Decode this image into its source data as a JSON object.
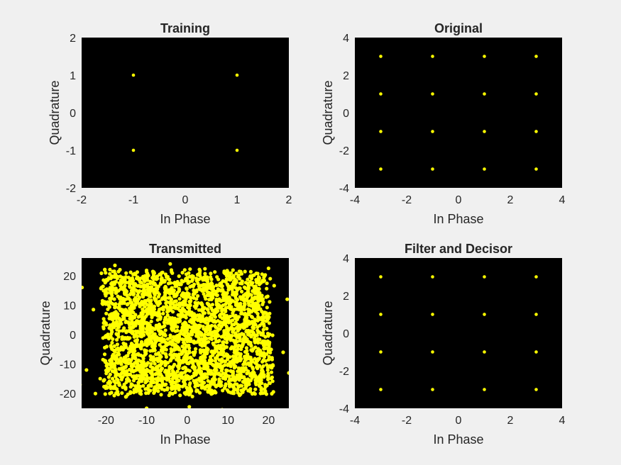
{
  "figure": {
    "background": "#f0f0f0",
    "axes_bg": "#000000",
    "marker_color": "#ffff00"
  },
  "chart_data": [
    {
      "type": "scatter",
      "title": "Training",
      "xlabel": "In Phase",
      "ylabel": "Quadrature",
      "xlim": [
        -2,
        2
      ],
      "ylim": [
        -2,
        2
      ],
      "xticks": [
        -2,
        -1,
        0,
        1,
        2
      ],
      "yticks": [
        -2,
        -1,
        0,
        1,
        2
      ],
      "x": [
        -1,
        1,
        -1,
        1
      ],
      "y": [
        1,
        1,
        -1,
        -1
      ]
    },
    {
      "type": "scatter",
      "title": "Original",
      "xlabel": "In Phase",
      "ylabel": "Quadrature",
      "xlim": [
        -4,
        4
      ],
      "ylim": [
        -4,
        4
      ],
      "xticks": [
        -4,
        -2,
        0,
        2,
        4
      ],
      "yticks": [
        -4,
        -2,
        0,
        2,
        4
      ],
      "x": [
        -3,
        -1,
        1,
        3,
        -3,
        -1,
        1,
        3,
        -3,
        -1,
        1,
        3,
        -3,
        -1,
        1,
        3
      ],
      "y": [
        3,
        3,
        3,
        3,
        1,
        1,
        1,
        1,
        -1,
        -1,
        -1,
        -1,
        -3,
        -3,
        -3,
        -3
      ]
    },
    {
      "type": "scatter",
      "title": "Transmitted",
      "xlabel": "In Phase",
      "ylabel": "Quadrature",
      "xlim": [
        -26,
        25
      ],
      "ylim": [
        -25,
        26
      ],
      "xticks": [
        -20,
        -10,
        0,
        10,
        20
      ],
      "yticks": [
        -20,
        -10,
        0,
        10,
        20
      ],
      "approx_point_count": 3000,
      "x_spread": [
        -20,
        20
      ],
      "y_spread": [
        -20,
        21
      ],
      "x": [
        -26.4,
        -25.9,
        -24.8,
        -23.1,
        -22.6,
        25.0,
        24.6,
        23.6,
        -20.3,
        -17.8,
        -10.0,
        -4.2,
        0.5,
        8.6,
        20.0,
        -12.0,
        -15.0,
        5.0,
        15.0
      ],
      "y": [
        -17.0,
        16.0,
        -12.0,
        8.5,
        -20.0,
        -13.0,
        12.0,
        -6.0,
        22.0,
        23.5,
        -25.0,
        24.0,
        -24.5,
        -25.5,
        22.5,
        19.0,
        -21.0,
        18.0,
        -19.0
      ]
    },
    {
      "type": "scatter",
      "title": "Filter and Decisor",
      "xlabel": "In Phase",
      "ylabel": "Quadrature",
      "xlim": [
        -4,
        4
      ],
      "ylim": [
        -4,
        4
      ],
      "xticks": [
        -4,
        -2,
        0,
        2,
        4
      ],
      "yticks": [
        -4,
        -2,
        0,
        2,
        4
      ],
      "x": [
        -3,
        -1,
        1,
        3,
        -3,
        -1,
        1,
        3,
        -3,
        -1,
        1,
        3,
        -3,
        -1,
        1,
        3
      ],
      "y": [
        3,
        3,
        3,
        3,
        1,
        1,
        1,
        1,
        -1,
        -1,
        -1,
        -1,
        -3,
        -3,
        -3,
        -3
      ]
    }
  ]
}
